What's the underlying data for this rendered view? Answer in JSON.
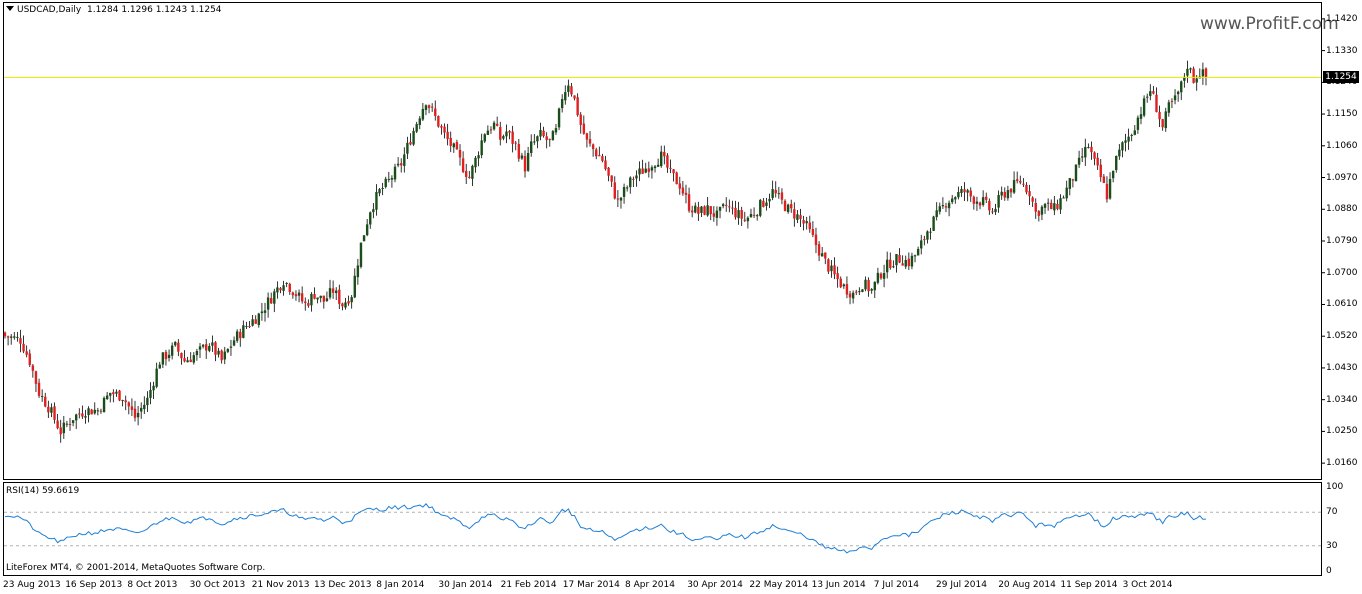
{
  "header": {
    "symbol": "USDCAD,Daily",
    "ohlc": "1.1284 1.1296 1.1243 1.1254"
  },
  "indicator": {
    "label": "RSI(14) 59.6619"
  },
  "footer": {
    "copyright": "LiteForex MT4, © 2001-2014, MetaQuotes Software Corp."
  },
  "watermark": "www.ProfitF.com",
  "colors": {
    "bull": "#1a4d1a",
    "bear": "#e02020",
    "current_line": "#e8e800",
    "rsi_line": "#1f7fd6",
    "grid_dash": "#b0b0b0"
  },
  "chart_data": {
    "type": "candlestick",
    "title": "USDCAD,Daily",
    "ylim": [
      1.0115,
      1.1465
    ],
    "y_ticks": [
      "1.1420",
      "1.1330",
      "1.1240",
      "1.1150",
      "1.1060",
      "1.0970",
      "1.0880",
      "1.0790",
      "1.0700",
      "1.0610",
      "1.0520",
      "1.0430",
      "1.0340",
      "1.0250",
      "1.0160"
    ],
    "current_price": "1.1254",
    "x_ticks": [
      "23 Aug 2013",
      "16 Sep 2013",
      "8 Oct 2013",
      "30 Oct 2013",
      "21 Nov 2013",
      "13 Dec 2013",
      "8 Jan 2014",
      "30 Jan 2014",
      "21 Feb 2014",
      "17 Mar 2014",
      "8 Apr 2014",
      "30 Apr 2014",
      "22 May 2014",
      "13 Jun 2014",
      "7 Jul 2014",
      "29 Jul 2014",
      "20 Aug 2014",
      "11 Sep 2014",
      "3 Oct 2014"
    ],
    "close_path": [
      [
        0,
        1.052
      ],
      [
        5,
        1.051
      ],
      [
        8,
        1.045
      ],
      [
        11,
        1.036
      ],
      [
        14,
        1.032
      ],
      [
        18,
        1.025
      ],
      [
        22,
        1.029
      ],
      [
        26,
        1.031
      ],
      [
        30,
        1.031
      ],
      [
        34,
        1.036
      ],
      [
        38,
        1.035
      ],
      [
        42,
        1.029
      ],
      [
        46,
        1.034
      ],
      [
        50,
        1.045
      ],
      [
        55,
        1.049
      ],
      [
        58,
        1.045
      ],
      [
        62,
        1.047
      ],
      [
        66,
        1.05
      ],
      [
        70,
        1.045
      ],
      [
        74,
        1.051
      ],
      [
        78,
        1.055
      ],
      [
        82,
        1.058
      ],
      [
        86,
        1.063
      ],
      [
        90,
        1.068
      ],
      [
        93,
        1.065
      ],
      [
        97,
        1.061
      ],
      [
        100,
        1.064
      ],
      [
        103,
        1.062
      ],
      [
        106,
        1.065
      ],
      [
        109,
        1.061
      ],
      [
        112,
        1.064
      ],
      [
        115,
        1.078
      ],
      [
        118,
        1.088
      ],
      [
        121,
        1.093
      ],
      [
        124,
        1.096
      ],
      [
        128,
        1.101
      ],
      [
        131,
        1.108
      ],
      [
        134,
        1.115
      ],
      [
        136,
        1.119
      ],
      [
        139,
        1.114
      ],
      [
        142,
        1.109
      ],
      [
        145,
        1.105
      ],
      [
        148,
        1.1
      ],
      [
        150,
        1.097
      ],
      [
        152,
        1.102
      ],
      [
        155,
        1.11
      ],
      [
        158,
        1.112
      ],
      [
        160,
        1.108
      ],
      [
        162,
        1.11
      ],
      [
        165,
        1.106
      ],
      [
        168,
        1.1
      ],
      [
        170,
        1.106
      ],
      [
        173,
        1.109
      ],
      [
        176,
        1.107
      ],
      [
        178,
        1.11
      ],
      [
        180,
        1.12
      ],
      [
        182,
        1.124
      ],
      [
        184,
        1.119
      ],
      [
        186,
        1.112
      ],
      [
        188,
        1.107
      ],
      [
        190,
        1.105
      ],
      [
        193,
        1.102
      ],
      [
        195,
        1.097
      ],
      [
        198,
        1.09
      ],
      [
        200,
        1.093
      ],
      [
        203,
        1.097
      ],
      [
        206,
        1.099
      ],
      [
        209,
        1.101
      ],
      [
        212,
        1.103
      ],
      [
        215,
        1.098
      ],
      [
        218,
        1.095
      ],
      [
        221,
        1.089
      ],
      [
        224,
        1.087
      ],
      [
        227,
        1.088
      ],
      [
        230,
        1.086
      ],
      [
        233,
        1.089
      ],
      [
        236,
        1.087
      ],
      [
        239,
        1.085
      ],
      [
        242,
        1.087
      ],
      [
        245,
        1.09
      ],
      [
        248,
        1.093
      ],
      [
        250,
        1.091
      ],
      [
        253,
        1.088
      ],
      [
        256,
        1.086
      ],
      [
        259,
        1.083
      ],
      [
        262,
        1.078
      ],
      [
        265,
        1.073
      ],
      [
        268,
        1.069
      ],
      [
        271,
        1.066
      ],
      [
        274,
        1.064
      ],
      [
        277,
        1.067
      ],
      [
        280,
        1.065
      ],
      [
        283,
        1.07
      ],
      [
        286,
        1.073
      ],
      [
        289,
        1.074
      ],
      [
        292,
        1.073
      ],
      [
        295,
        1.076
      ],
      [
        298,
        1.082
      ],
      [
        301,
        1.086
      ],
      [
        304,
        1.09
      ],
      [
        307,
        1.092
      ],
      [
        310,
        1.093
      ],
      [
        313,
        1.091
      ],
      [
        316,
        1.09
      ],
      [
        319,
        1.087
      ],
      [
        322,
        1.092
      ],
      [
        325,
        1.094
      ],
      [
        328,
        1.096
      ],
      [
        331,
        1.093
      ],
      [
        333,
        1.087
      ],
      [
        336,
        1.089
      ],
      [
        339,
        1.088
      ],
      [
        342,
        1.092
      ],
      [
        345,
        1.097
      ],
      [
        348,
        1.103
      ],
      [
        350,
        1.106
      ],
      [
        352,
        1.101
      ],
      [
        354,
        1.097
      ],
      [
        356,
        1.092
      ],
      [
        358,
        1.1
      ],
      [
        361,
        1.106
      ],
      [
        364,
        1.11
      ],
      [
        366,
        1.114
      ],
      [
        368,
        1.118
      ],
      [
        370,
        1.122
      ],
      [
        372,
        1.117
      ],
      [
        374,
        1.111
      ],
      [
        376,
        1.117
      ],
      [
        378,
        1.119
      ],
      [
        380,
        1.123
      ],
      [
        382,
        1.129
      ],
      [
        384,
        1.125
      ],
      [
        386,
        1.127
      ],
      [
        388,
        1.1254
      ]
    ],
    "n_bars": 389
  },
  "rsi_data": {
    "type": "line",
    "ylim": [
      0,
      100
    ],
    "y_ticks": [
      "100",
      "70",
      "30",
      "0"
    ],
    "levels": [
      70,
      30
    ],
    "values": [
      [
        0,
        67
      ],
      [
        5,
        64
      ],
      [
        8,
        55
      ],
      [
        11,
        44
      ],
      [
        14,
        40
      ],
      [
        18,
        34
      ],
      [
        22,
        42
      ],
      [
        26,
        45
      ],
      [
        30,
        46
      ],
      [
        34,
        50
      ],
      [
        38,
        49
      ],
      [
        42,
        44
      ],
      [
        46,
        50
      ],
      [
        50,
        60
      ],
      [
        55,
        64
      ],
      [
        58,
        58
      ],
      [
        62,
        61
      ],
      [
        66,
        64
      ],
      [
        70,
        56
      ],
      [
        74,
        62
      ],
      [
        78,
        65
      ],
      [
        82,
        67
      ],
      [
        86,
        70
      ],
      [
        90,
        72
      ],
      [
        93,
        67
      ],
      [
        97,
        60
      ],
      [
        100,
        64
      ],
      [
        103,
        60
      ],
      [
        106,
        64
      ],
      [
        109,
        58
      ],
      [
        112,
        62
      ],
      [
        115,
        70
      ],
      [
        118,
        74
      ],
      [
        121,
        73
      ],
      [
        124,
        75
      ],
      [
        128,
        76
      ],
      [
        131,
        76
      ],
      [
        134,
        78
      ],
      [
        136,
        79
      ],
      [
        139,
        72
      ],
      [
        142,
        64
      ],
      [
        145,
        62
      ],
      [
        148,
        56
      ],
      [
        150,
        52
      ],
      [
        152,
        58
      ],
      [
        155,
        66
      ],
      [
        158,
        66
      ],
      [
        160,
        60
      ],
      [
        162,
        63
      ],
      [
        165,
        57
      ],
      [
        168,
        49
      ],
      [
        170,
        57
      ],
      [
        173,
        62
      ],
      [
        176,
        58
      ],
      [
        178,
        62
      ],
      [
        180,
        72
      ],
      [
        182,
        73
      ],
      [
        184,
        64
      ],
      [
        186,
        53
      ],
      [
        188,
        49
      ],
      [
        190,
        48
      ],
      [
        193,
        46
      ],
      [
        195,
        42
      ],
      [
        198,
        37
      ],
      [
        200,
        42
      ],
      [
        203,
        48
      ],
      [
        206,
        51
      ],
      [
        209,
        52
      ],
      [
        212,
        55
      ],
      [
        215,
        47
      ],
      [
        218,
        45
      ],
      [
        221,
        39
      ],
      [
        224,
        37
      ],
      [
        227,
        40
      ],
      [
        230,
        36
      ],
      [
        233,
        43
      ],
      [
        236,
        42
      ],
      [
        239,
        40
      ],
      [
        242,
        44
      ],
      [
        245,
        49
      ],
      [
        248,
        54
      ],
      [
        250,
        51
      ],
      [
        253,
        47
      ],
      [
        256,
        45
      ],
      [
        259,
        41
      ],
      [
        262,
        34
      ],
      [
        265,
        28
      ],
      [
        268,
        26
      ],
      [
        271,
        23
      ],
      [
        274,
        22
      ],
      [
        277,
        30
      ],
      [
        280,
        27
      ],
      [
        283,
        37
      ],
      [
        286,
        42
      ],
      [
        289,
        44
      ],
      [
        292,
        42
      ],
      [
        295,
        47
      ],
      [
        298,
        56
      ],
      [
        301,
        62
      ],
      [
        304,
        68
      ],
      [
        307,
        70
      ],
      [
        310,
        71
      ],
      [
        313,
        66
      ],
      [
        316,
        64
      ],
      [
        319,
        58
      ],
      [
        322,
        66
      ],
      [
        325,
        67
      ],
      [
        328,
        69
      ],
      [
        331,
        62
      ],
      [
        333,
        53
      ],
      [
        336,
        56
      ],
      [
        339,
        54
      ],
      [
        342,
        60
      ],
      [
        345,
        64
      ],
      [
        348,
        68
      ],
      [
        350,
        70
      ],
      [
        352,
        62
      ],
      [
        354,
        56
      ],
      [
        356,
        52
      ],
      [
        358,
        62
      ],
      [
        361,
        65
      ],
      [
        364,
        64
      ],
      [
        366,
        65
      ],
      [
        368,
        68
      ],
      [
        370,
        71
      ],
      [
        372,
        63
      ],
      [
        374,
        57
      ],
      [
        376,
        64
      ],
      [
        378,
        64
      ],
      [
        380,
        68
      ],
      [
        382,
        69
      ],
      [
        384,
        62
      ],
      [
        386,
        64
      ],
      [
        388,
        59.66
      ]
    ]
  }
}
